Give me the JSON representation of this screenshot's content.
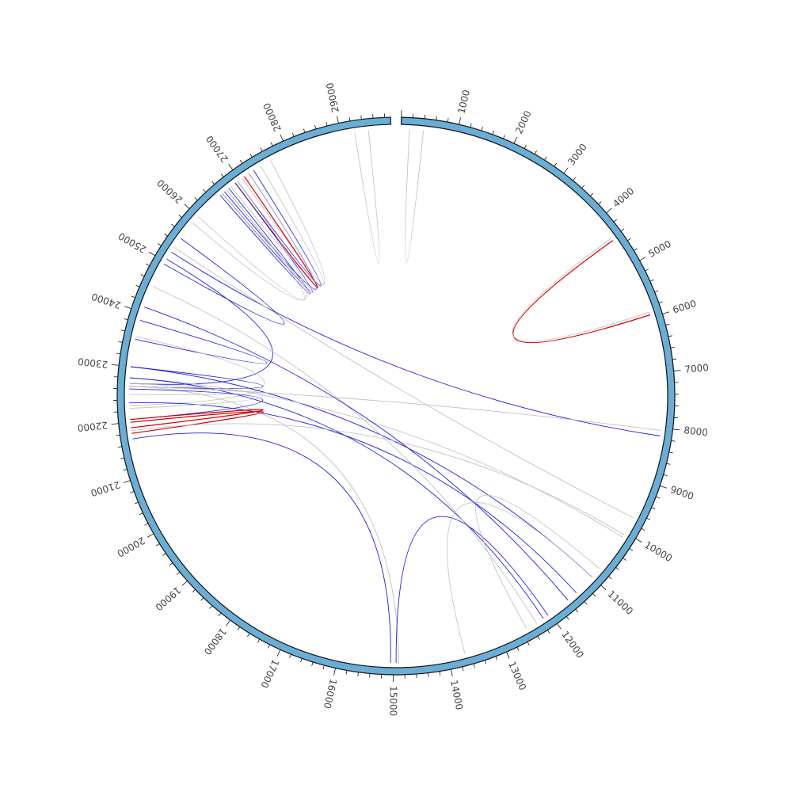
{
  "genome": {
    "length": 29903,
    "ring_color": "#6aaed6",
    "labels": [
      "1000",
      "2000",
      "3000",
      "4000",
      "5000",
      "6000",
      "7000",
      "8000",
      "9000",
      "10000",
      "11000",
      "12000",
      "13000",
      "14000",
      "15000",
      "16000",
      "17000",
      "18000",
      "19000",
      "20000",
      "21000",
      "22000",
      "23000",
      "24000",
      "25000",
      "26000",
      "27000",
      "28000",
      "29000"
    ]
  },
  "link_colors": {
    "blue": "#1f1fe6",
    "gray": "#bdbdbd",
    "red": "#d40000"
  },
  "links": [
    {
      "a": 4450,
      "b": 5950,
      "color": "red"
    },
    {
      "a": 4400,
      "b": 5900,
      "color": "gray"
    },
    {
      "a": 29500,
      "b": 29250,
      "color": "gray"
    },
    {
      "a": 400,
      "b": 150,
      "color": "gray"
    },
    {
      "a": 27650,
      "b": 26800,
      "color": "gray"
    },
    {
      "a": 27450,
      "b": 27050,
      "color": "gray"
    },
    {
      "a": 27300,
      "b": 26950,
      "color": "blue"
    },
    {
      "a": 27200,
      "b": 26650,
      "color": "blue"
    },
    {
      "a": 27100,
      "b": 26900,
      "color": "red"
    },
    {
      "a": 26900,
      "b": 26600,
      "color": "blue"
    },
    {
      "a": 26700,
      "b": 26550,
      "color": "gray"
    },
    {
      "a": 26550,
      "b": 26750,
      "color": "blue"
    },
    {
      "a": 26600,
      "b": 27200,
      "color": "gray"
    },
    {
      "a": 26000,
      "b": 26700,
      "color": "gray"
    },
    {
      "a": 25850,
      "b": 26950,
      "color": "gray"
    },
    {
      "a": 25500,
      "b": 24950,
      "color": "blue"
    },
    {
      "a": 25200,
      "b": 8150,
      "color": "blue"
    },
    {
      "a": 25300,
      "b": 9700,
      "color": "gray"
    },
    {
      "a": 25050,
      "b": 22700,
      "color": "blue"
    },
    {
      "a": 23500,
      "b": 23850,
      "color": "blue"
    },
    {
      "a": 23550,
      "b": 22300,
      "color": "gray"
    },
    {
      "a": 23000,
      "b": 11000,
      "color": "blue"
    },
    {
      "a": 23000,
      "b": 22650,
      "color": "blue"
    },
    {
      "a": 22800,
      "b": 10100,
      "color": "gray"
    },
    {
      "a": 22800,
      "b": 12150,
      "color": "blue"
    },
    {
      "a": 22650,
      "b": 8050,
      "color": "gray"
    },
    {
      "a": 22650,
      "b": 14900,
      "color": "gray"
    },
    {
      "a": 22600,
      "b": 22050,
      "color": "blue"
    },
    {
      "a": 22500,
      "b": 22650,
      "color": "gray"
    },
    {
      "a": 22350,
      "b": 11400,
      "color": "blue"
    },
    {
      "a": 22250,
      "b": 22700,
      "color": "gray"
    },
    {
      "a": 21900,
      "b": 22050,
      "color": "red"
    },
    {
      "a": 21800,
      "b": 22000,
      "color": "red"
    },
    {
      "a": 21850,
      "b": 10050,
      "color": "gray"
    },
    {
      "a": 21700,
      "b": 15050,
      "color": "blue"
    },
    {
      "a": 14950,
      "b": 12050,
      "color": "blue"
    },
    {
      "a": 13700,
      "b": 11000,
      "color": "gray"
    },
    {
      "a": 12500,
      "b": 10800,
      "color": "gray"
    },
    {
      "a": 24500,
      "b": 12300,
      "color": "gray"
    },
    {
      "a": 24100,
      "b": 11600,
      "color": "blue"
    }
  ]
}
